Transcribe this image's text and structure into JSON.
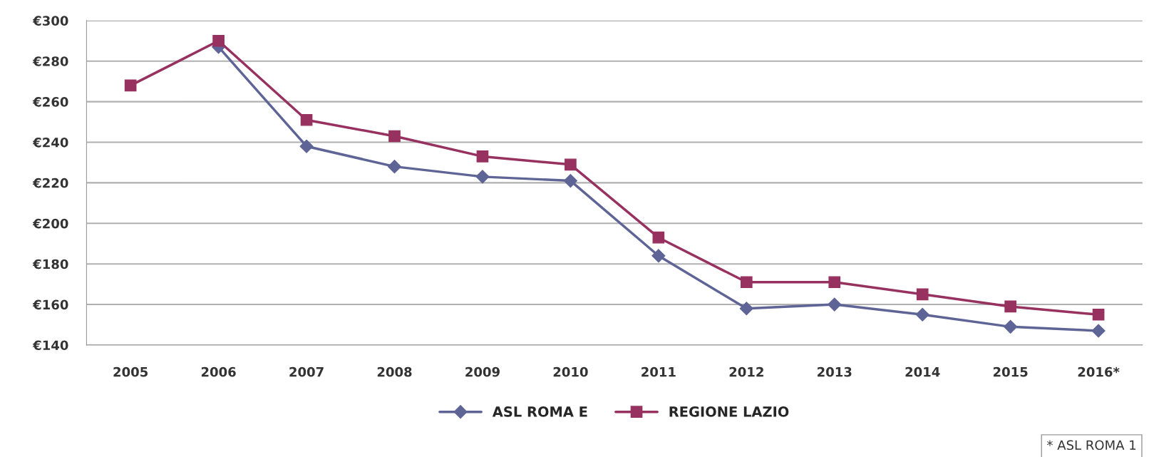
{
  "chart_data": {
    "type": "line",
    "categories": [
      "2005",
      "2006",
      "2007",
      "2008",
      "2009",
      "2010",
      "2011",
      "2012",
      "2013",
      "2014",
      "2015",
      "2016*"
    ],
    "series": [
      {
        "name": "ASL ROMA E",
        "color": "#5e6596",
        "marker": "diamond",
        "values": [
          null,
          287,
          238,
          228,
          223,
          221,
          184,
          158,
          160,
          155,
          149,
          147
        ]
      },
      {
        "name": "REGIONE LAZIO",
        "color": "#97315f",
        "marker": "square",
        "values": [
          268,
          290,
          251,
          243,
          233,
          229,
          193,
          171,
          171,
          165,
          159,
          155
        ]
      }
    ],
    "ylim": [
      140,
      300
    ],
    "yticks": [
      {
        "value": 140,
        "label": "€140"
      },
      {
        "value": 160,
        "label": "€160"
      },
      {
        "value": 180,
        "label": "€180"
      },
      {
        "value": 200,
        "label": "€200"
      },
      {
        "value": 220,
        "label": "€220"
      },
      {
        "value": 240,
        "label": "€240"
      },
      {
        "value": 260,
        "label": "€260"
      },
      {
        "value": 280,
        "label": "€280"
      },
      {
        "value": 300,
        "label": "€300"
      }
    ],
    "grid": "y",
    "legend": "bottom",
    "line_style": "solid",
    "annotations": [
      "* ASL ROMA 1"
    ]
  }
}
